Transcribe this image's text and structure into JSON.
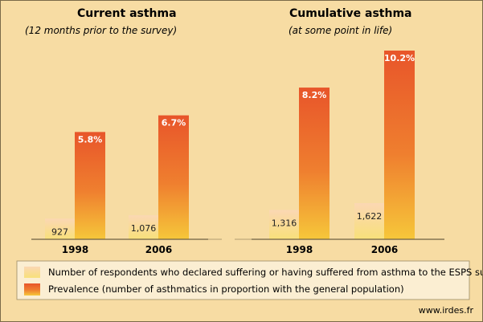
{
  "chart_data": [
    {
      "type": "bar",
      "title": "Current asthma",
      "subtitle": "(12 months prior to the survey)",
      "categories": [
        "1998",
        "2006"
      ],
      "series": [
        {
          "name": "Number of respondents who declared suffering or having suffered from asthma to the ESPS survey",
          "values": [
            927,
            1076
          ],
          "labels": [
            "927",
            "1,076"
          ]
        },
        {
          "name": "Prevalence (number of asthmatics in proportion with the general population)",
          "values": [
            5.8,
            6.7
          ],
          "labels": [
            "5.8%",
            "6.7%"
          ]
        }
      ]
    },
    {
      "type": "bar",
      "title": "Cumulative asthma",
      "subtitle": "(at some point in life)",
      "categories": [
        "1998",
        "2006"
      ],
      "series": [
        {
          "name": "Number of respondents who declared suffering or having suffered from asthma to the ESPS survey",
          "values": [
            1316,
            1622
          ],
          "labels": [
            "1,316",
            "1,622"
          ]
        },
        {
          "name": "Prevalence (number of asthmatics in proportion with the general population)",
          "values": [
            8.2,
            10.2
          ],
          "labels": [
            "8.2%",
            "10.2%"
          ]
        }
      ]
    }
  ],
  "legend": [
    {
      "label": "Number of respondents who declared suffering or having suffered from asthma to the ESPS survey",
      "style": "respondents"
    },
    {
      "label": "Prevalence (number of asthmatics in proportion with the general population)",
      "style": "prevalence"
    }
  ],
  "source": "www.irdes.fr",
  "colors": {
    "background": "#f7dca3",
    "legend_background": "#fbeed2",
    "respondents_top": "#fbd7b3",
    "respondents_bottom": "#f8e07a",
    "prevalence_top": "#e8552a",
    "prevalence_bottom": "#f6c73a"
  }
}
